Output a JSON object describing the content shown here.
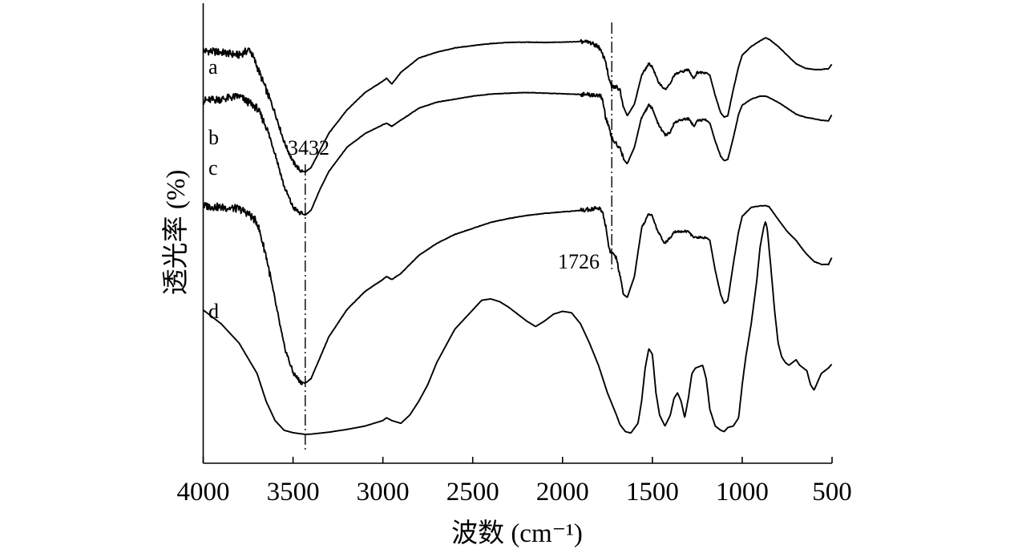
{
  "chart_data": {
    "type": "line",
    "xlabel": "波数 (cm⁻¹)",
    "ylabel": "透光率 (%)",
    "xlim": [
      4000,
      500
    ],
    "x_reversed": true,
    "xticks": [
      "4000",
      "3500",
      "3000",
      "2500",
      "2000",
      "1500",
      "1000",
      "500"
    ],
    "ylim": [
      0,
      100
    ],
    "y_tick_labels": false,
    "grid": false,
    "legend": "none",
    "annotations": [
      {
        "text": "3432",
        "x": 3432
      },
      {
        "text": "1726",
        "x": 1726
      }
    ],
    "series": [
      {
        "name": "a",
        "points": [
          [
            4000,
            93.5
          ],
          [
            3900,
            93
          ],
          [
            3800,
            92
          ],
          [
            3740,
            94
          ],
          [
            3700,
            88
          ],
          [
            3650,
            80
          ],
          [
            3600,
            72
          ],
          [
            3550,
            62
          ],
          [
            3500,
            55
          ],
          [
            3460,
            52
          ],
          [
            3432,
            51.5
          ],
          [
            3400,
            53
          ],
          [
            3350,
            59
          ],
          [
            3300,
            65
          ],
          [
            3200,
            73
          ],
          [
            3100,
            79
          ],
          [
            3000,
            83
          ],
          [
            2980,
            84
          ],
          [
            2950,
            82
          ],
          [
            2900,
            86
          ],
          [
            2800,
            91
          ],
          [
            2700,
            93
          ],
          [
            2600,
            94.5
          ],
          [
            2500,
            95.3
          ],
          [
            2400,
            96
          ],
          [
            2300,
            96.4
          ],
          [
            2200,
            96.5
          ],
          [
            2100,
            96.4
          ],
          [
            2000,
            96.5
          ],
          [
            1900,
            96.7
          ],
          [
            1850,
            96.4
          ],
          [
            1800,
            95
          ],
          [
            1760,
            90
          ],
          [
            1740,
            83
          ],
          [
            1726,
            81
          ],
          [
            1700,
            81
          ],
          [
            1680,
            80
          ],
          [
            1660,
            74
          ],
          [
            1640,
            71
          ],
          [
            1600,
            75
          ],
          [
            1560,
            85
          ],
          [
            1520,
            89
          ],
          [
            1500,
            88
          ],
          [
            1470,
            83
          ],
          [
            1430,
            80
          ],
          [
            1400,
            82
          ],
          [
            1380,
            85
          ],
          [
            1350,
            86
          ],
          [
            1300,
            87
          ],
          [
            1270,
            84
          ],
          [
            1250,
            86
          ],
          [
            1200,
            86
          ],
          [
            1180,
            85
          ],
          [
            1150,
            78
          ],
          [
            1120,
            72
          ],
          [
            1100,
            70.5
          ],
          [
            1080,
            71
          ],
          [
            1050,
            80
          ],
          [
            1020,
            88
          ],
          [
            1000,
            92
          ],
          [
            950,
            95
          ],
          [
            900,
            97
          ],
          [
            870,
            98
          ],
          [
            850,
            97.5
          ],
          [
            800,
            95
          ],
          [
            750,
            92
          ],
          [
            700,
            89
          ],
          [
            650,
            87.5
          ],
          [
            600,
            87
          ],
          [
            560,
            87
          ],
          [
            520,
            87.3
          ],
          [
            500,
            89
          ]
        ]
      },
      {
        "name": "b",
        "points": [
          [
            4000,
            74.5
          ],
          [
            3900,
            75
          ],
          [
            3800,
            76
          ],
          [
            3750,
            74
          ],
          [
            3700,
            72
          ],
          [
            3650,
            66
          ],
          [
            3600,
            57
          ],
          [
            3550,
            46
          ],
          [
            3500,
            39
          ],
          [
            3460,
            37
          ],
          [
            3432,
            36.5
          ],
          [
            3400,
            38
          ],
          [
            3350,
            45
          ],
          [
            3300,
            51
          ],
          [
            3200,
            59
          ],
          [
            3100,
            63.5
          ],
          [
            3000,
            66.5
          ],
          [
            2980,
            67
          ],
          [
            2950,
            66
          ],
          [
            2900,
            68
          ],
          [
            2800,
            72
          ],
          [
            2700,
            74
          ],
          [
            2600,
            75
          ],
          [
            2500,
            76
          ],
          [
            2400,
            76.7
          ],
          [
            2300,
            77
          ],
          [
            2200,
            77.2
          ],
          [
            2100,
            77
          ],
          [
            2000,
            76.8
          ],
          [
            1900,
            76.6
          ],
          [
            1800,
            76.3
          ],
          [
            1780,
            75.5
          ],
          [
            1760,
            69
          ],
          [
            1740,
            65
          ],
          [
            1726,
            62
          ],
          [
            1700,
            60
          ],
          [
            1680,
            59
          ],
          [
            1660,
            55
          ],
          [
            1640,
            53.5
          ],
          [
            1600,
            59
          ],
          [
            1560,
            69
          ],
          [
            1520,
            73
          ],
          [
            1500,
            72
          ],
          [
            1470,
            67
          ],
          [
            1430,
            63
          ],
          [
            1400,
            64
          ],
          [
            1380,
            67
          ],
          [
            1350,
            68
          ],
          [
            1300,
            68.5
          ],
          [
            1270,
            66
          ],
          [
            1250,
            68
          ],
          [
            1200,
            68
          ],
          [
            1180,
            67
          ],
          [
            1150,
            61
          ],
          [
            1120,
            56
          ],
          [
            1100,
            54.5
          ],
          [
            1080,
            55
          ],
          [
            1050,
            62
          ],
          [
            1020,
            70
          ],
          [
            1000,
            73
          ],
          [
            950,
            75
          ],
          [
            900,
            76
          ],
          [
            870,
            76
          ],
          [
            850,
            75.5
          ],
          [
            800,
            74
          ],
          [
            750,
            72
          ],
          [
            700,
            70
          ],
          [
            650,
            69
          ],
          [
            600,
            68.5
          ],
          [
            560,
            68
          ],
          [
            520,
            67.8
          ],
          [
            500,
            70
          ]
        ]
      },
      {
        "name": "c",
        "points": [
          [
            4000,
            71.5
          ],
          [
            3900,
            71
          ],
          [
            3800,
            70.5
          ],
          [
            3750,
            69
          ],
          [
            3700,
            66
          ],
          [
            3650,
            55
          ],
          [
            3600,
            40
          ],
          [
            3550,
            25
          ],
          [
            3500,
            16
          ],
          [
            3460,
            13
          ],
          [
            3432,
            12.5
          ],
          [
            3400,
            14
          ],
          [
            3350,
            21
          ],
          [
            3300,
            28
          ],
          [
            3200,
            37
          ],
          [
            3100,
            43
          ],
          [
            3000,
            47
          ],
          [
            2980,
            48
          ],
          [
            2950,
            47
          ],
          [
            2900,
            49
          ],
          [
            2800,
            55
          ],
          [
            2700,
            59
          ],
          [
            2600,
            62
          ],
          [
            2500,
            64
          ],
          [
            2400,
            66
          ],
          [
            2300,
            67.3
          ],
          [
            2200,
            68.3
          ],
          [
            2100,
            69
          ],
          [
            2000,
            69.5
          ],
          [
            1900,
            70
          ],
          [
            1850,
            70.4
          ],
          [
            1800,
            70.8
          ],
          [
            1780,
            70
          ],
          [
            1760,
            65
          ],
          [
            1740,
            57
          ],
          [
            1726,
            56
          ],
          [
            1700,
            54
          ],
          [
            1680,
            48
          ],
          [
            1660,
            42
          ],
          [
            1640,
            41
          ],
          [
            1600,
            48
          ],
          [
            1560,
            64
          ],
          [
            1520,
            69
          ],
          [
            1500,
            68
          ],
          [
            1470,
            63
          ],
          [
            1430,
            59
          ],
          [
            1400,
            61
          ],
          [
            1380,
            63
          ],
          [
            1350,
            63
          ],
          [
            1300,
            63
          ],
          [
            1270,
            61
          ],
          [
            1250,
            61
          ],
          [
            1200,
            61
          ],
          [
            1180,
            60
          ],
          [
            1150,
            50
          ],
          [
            1120,
            42
          ],
          [
            1100,
            39
          ],
          [
            1080,
            40
          ],
          [
            1050,
            52
          ],
          [
            1020,
            63
          ],
          [
            1000,
            68
          ],
          [
            950,
            71
          ],
          [
            900,
            71.5
          ],
          [
            870,
            71.6
          ],
          [
            850,
            71.2
          ],
          [
            800,
            67
          ],
          [
            750,
            63
          ],
          [
            700,
            60
          ],
          [
            650,
            56
          ],
          [
            600,
            53
          ],
          [
            560,
            52
          ],
          [
            520,
            52
          ],
          [
            500,
            54.5
          ]
        ]
      },
      {
        "name": "d",
        "points": [
          [
            4000,
            45
          ],
          [
            3900,
            40
          ],
          [
            3800,
            33
          ],
          [
            3700,
            22
          ],
          [
            3650,
            12
          ],
          [
            3600,
            5
          ],
          [
            3550,
            1.5
          ],
          [
            3500,
            0.6
          ],
          [
            3432,
            0
          ],
          [
            3400,
            0.1
          ],
          [
            3300,
            0.8
          ],
          [
            3200,
            1.8
          ],
          [
            3100,
            3
          ],
          [
            3000,
            5
          ],
          [
            2980,
            6
          ],
          [
            2950,
            5
          ],
          [
            2900,
            4
          ],
          [
            2850,
            7
          ],
          [
            2800,
            12
          ],
          [
            2750,
            18
          ],
          [
            2700,
            26
          ],
          [
            2600,
            38
          ],
          [
            2500,
            45
          ],
          [
            2450,
            48.5
          ],
          [
            2400,
            49
          ],
          [
            2350,
            48
          ],
          [
            2300,
            46
          ],
          [
            2200,
            41
          ],
          [
            2150,
            39
          ],
          [
            2100,
            41
          ],
          [
            2050,
            43.5
          ],
          [
            2000,
            44.5
          ],
          [
            1950,
            44
          ],
          [
            1900,
            40
          ],
          [
            1850,
            33
          ],
          [
            1800,
            25
          ],
          [
            1750,
            15
          ],
          [
            1700,
            7
          ],
          [
            1680,
            3.5
          ],
          [
            1650,
            1
          ],
          [
            1620,
            0.5
          ],
          [
            1580,
            4
          ],
          [
            1560,
            12
          ],
          [
            1540,
            24
          ],
          [
            1520,
            31
          ],
          [
            1500,
            29
          ],
          [
            1480,
            15
          ],
          [
            1460,
            7
          ],
          [
            1430,
            3
          ],
          [
            1400,
            7
          ],
          [
            1380,
            13
          ],
          [
            1360,
            15
          ],
          [
            1340,
            12
          ],
          [
            1320,
            6
          ],
          [
            1300,
            13
          ],
          [
            1280,
            22
          ],
          [
            1260,
            24
          ],
          [
            1240,
            24.5
          ],
          [
            1220,
            25
          ],
          [
            1200,
            20
          ],
          [
            1180,
            9
          ],
          [
            1150,
            3
          ],
          [
            1120,
            1.5
          ],
          [
            1100,
            1
          ],
          [
            1080,
            2.5
          ],
          [
            1050,
            3
          ],
          [
            1020,
            6
          ],
          [
            1000,
            18
          ],
          [
            980,
            28
          ],
          [
            950,
            40
          ],
          [
            920,
            55
          ],
          [
            900,
            68
          ],
          [
            880,
            75
          ],
          [
            870,
            77
          ],
          [
            860,
            74
          ],
          [
            840,
            60
          ],
          [
            820,
            45
          ],
          [
            800,
            33
          ],
          [
            780,
            28
          ],
          [
            760,
            26
          ],
          [
            740,
            25
          ],
          [
            720,
            26
          ],
          [
            700,
            27
          ],
          [
            680,
            25
          ],
          [
            660,
            24
          ],
          [
            640,
            23
          ],
          [
            620,
            18
          ],
          [
            600,
            16
          ],
          [
            580,
            19
          ],
          [
            560,
            22
          ],
          [
            540,
            23
          ],
          [
            520,
            24
          ],
          [
            500,
            25.5
          ]
        ]
      }
    ]
  }
}
